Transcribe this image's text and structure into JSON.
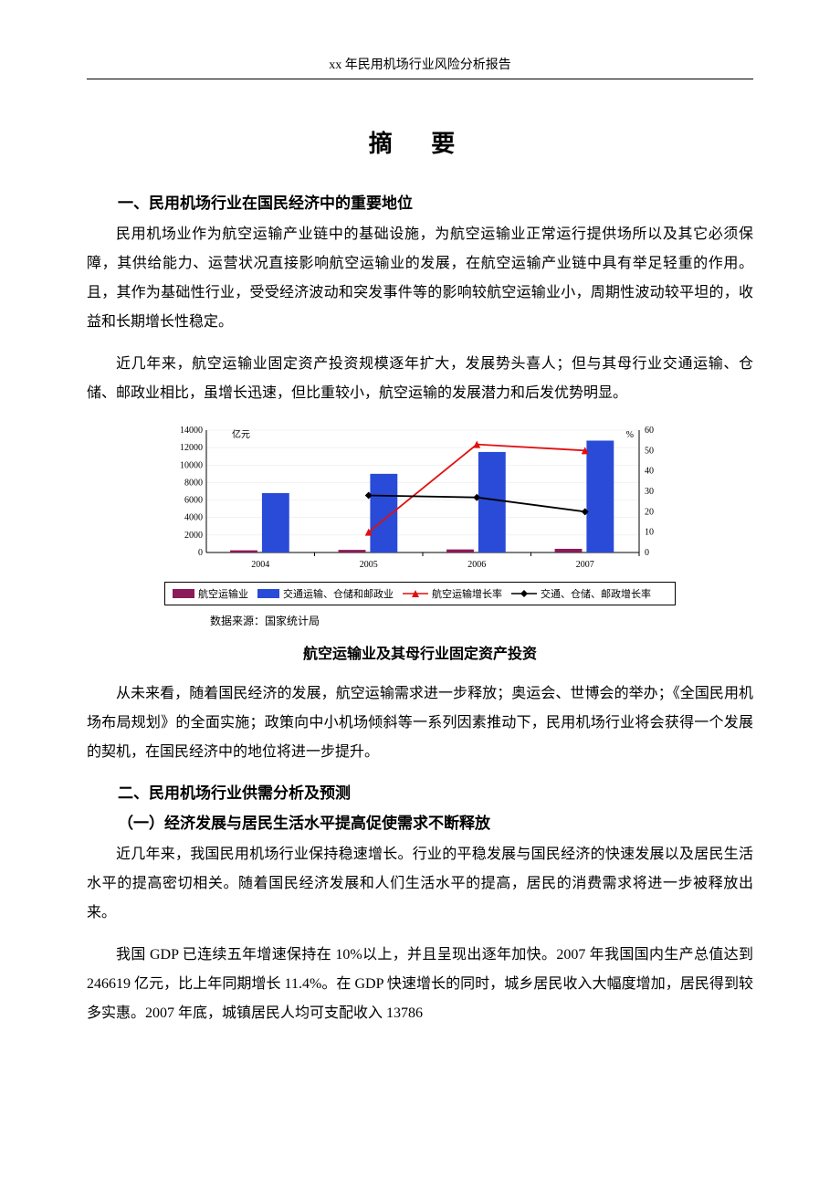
{
  "header": {
    "title": "xx 年民用机场行业风险分析报告"
  },
  "titles": {
    "main": "摘 要"
  },
  "sections": {
    "s1_heading": "一、民用机场行业在国民经济中的重要地位",
    "s1_p1": "民用机场业作为航空运输产业链中的基础设施，为航空运输业正常运行提供场所以及其它必须保障，其供给能力、运营状况直接影响航空运输业的发展，在航空运输产业链中具有举足轻重的作用。且，其作为基础性行业，受受经济波动和突发事件等的影响较航空运输业小，周期性波动较平坦的，收益和长期增长性稳定。",
    "s1_p2": "近几年来，航空运输业固定资产投资规模逐年扩大，发展势头喜人；但与其母行业交通运输、仓储、邮政业相比，虽增长迅速，但比重较小，航空运输的发展潜力和后发优势明显。",
    "s1_p3": "从未来看，随着国民经济的发展，航空运输需求进一步释放；奥运会、世博会的举办；《全国民用机场布局规划》的全面实施；政策向中小机场倾斜等一系列因素推动下，民用机场行业将会获得一个发展的契机，在国民经济中的地位将进一步提升。",
    "s2_heading": "二、民用机场行业供需分析及预测",
    "s2_sub1": "（一）经济发展与居民生活水平提高促使需求不断释放",
    "s2_p1": "近几年来，我国民用机场行业保持稳速增长。行业的平稳发展与国民经济的快速发展以及居民生活水平的提高密切相关。随着国民经济发展和人们生活水平的提高，居民的消费需求将进一步被释放出来。",
    "s2_p2": "我国 GDP 已连续五年增速保持在 10%以上，并且呈现出逐年加快。2007 年我国国内生产总值达到 246619 亿元，比上年同期增长 11.4%。在 GDP 快速增长的同时，城乡居民收入大幅度增加，居民得到较多实惠。2007 年底，城镇居民人均可支配收入 13786"
  },
  "chart": {
    "type": "bar+line",
    "categories": [
      "2004",
      "2005",
      "2006",
      "2007"
    ],
    "left_axis_label": "亿元",
    "right_axis_label": "%",
    "left_ylim": [
      0,
      14000
    ],
    "left_ytick_step": 2000,
    "right_ylim": [
      0,
      60
    ],
    "right_ytick_step": 10,
    "series_bars": [
      {
        "name": "航空运输业",
        "color": "#8b1a5a",
        "values": [
          250,
          300,
          350,
          420
        ]
      },
      {
        "name": "交通运输、仓储和邮政业",
        "color": "#2a4bd7",
        "values": [
          6800,
          9000,
          11500,
          12800
        ]
      }
    ],
    "series_lines": [
      {
        "name": "航空运输增长率",
        "color": "#e01010",
        "marker": "triangle",
        "values": [
          null,
          10,
          53,
          50
        ]
      },
      {
        "name": "交通、仓储、邮政增长率",
        "color": "#000000",
        "marker": "diamond",
        "values": [
          null,
          28,
          27,
          20
        ]
      }
    ],
    "bar_width": 0.28,
    "background_color": "#ffffff",
    "grid_color": "#cccccc",
    "axis_fontsize": 10,
    "label_fontsize": 10,
    "source": "数据来源：国家统计局",
    "chart_title": "航空运输业及其母行业固定资产投资",
    "legend": {
      "bar1": "航空运输业",
      "bar2": "交通运输、仓储和邮政业",
      "line1": "航空运输增长率",
      "line2": "交通、仓储、邮政增长率"
    }
  },
  "colors": {
    "bar1": "#8b1a5a",
    "bar2": "#2a4bd7",
    "line1": "#e01010",
    "line2": "#000000"
  }
}
